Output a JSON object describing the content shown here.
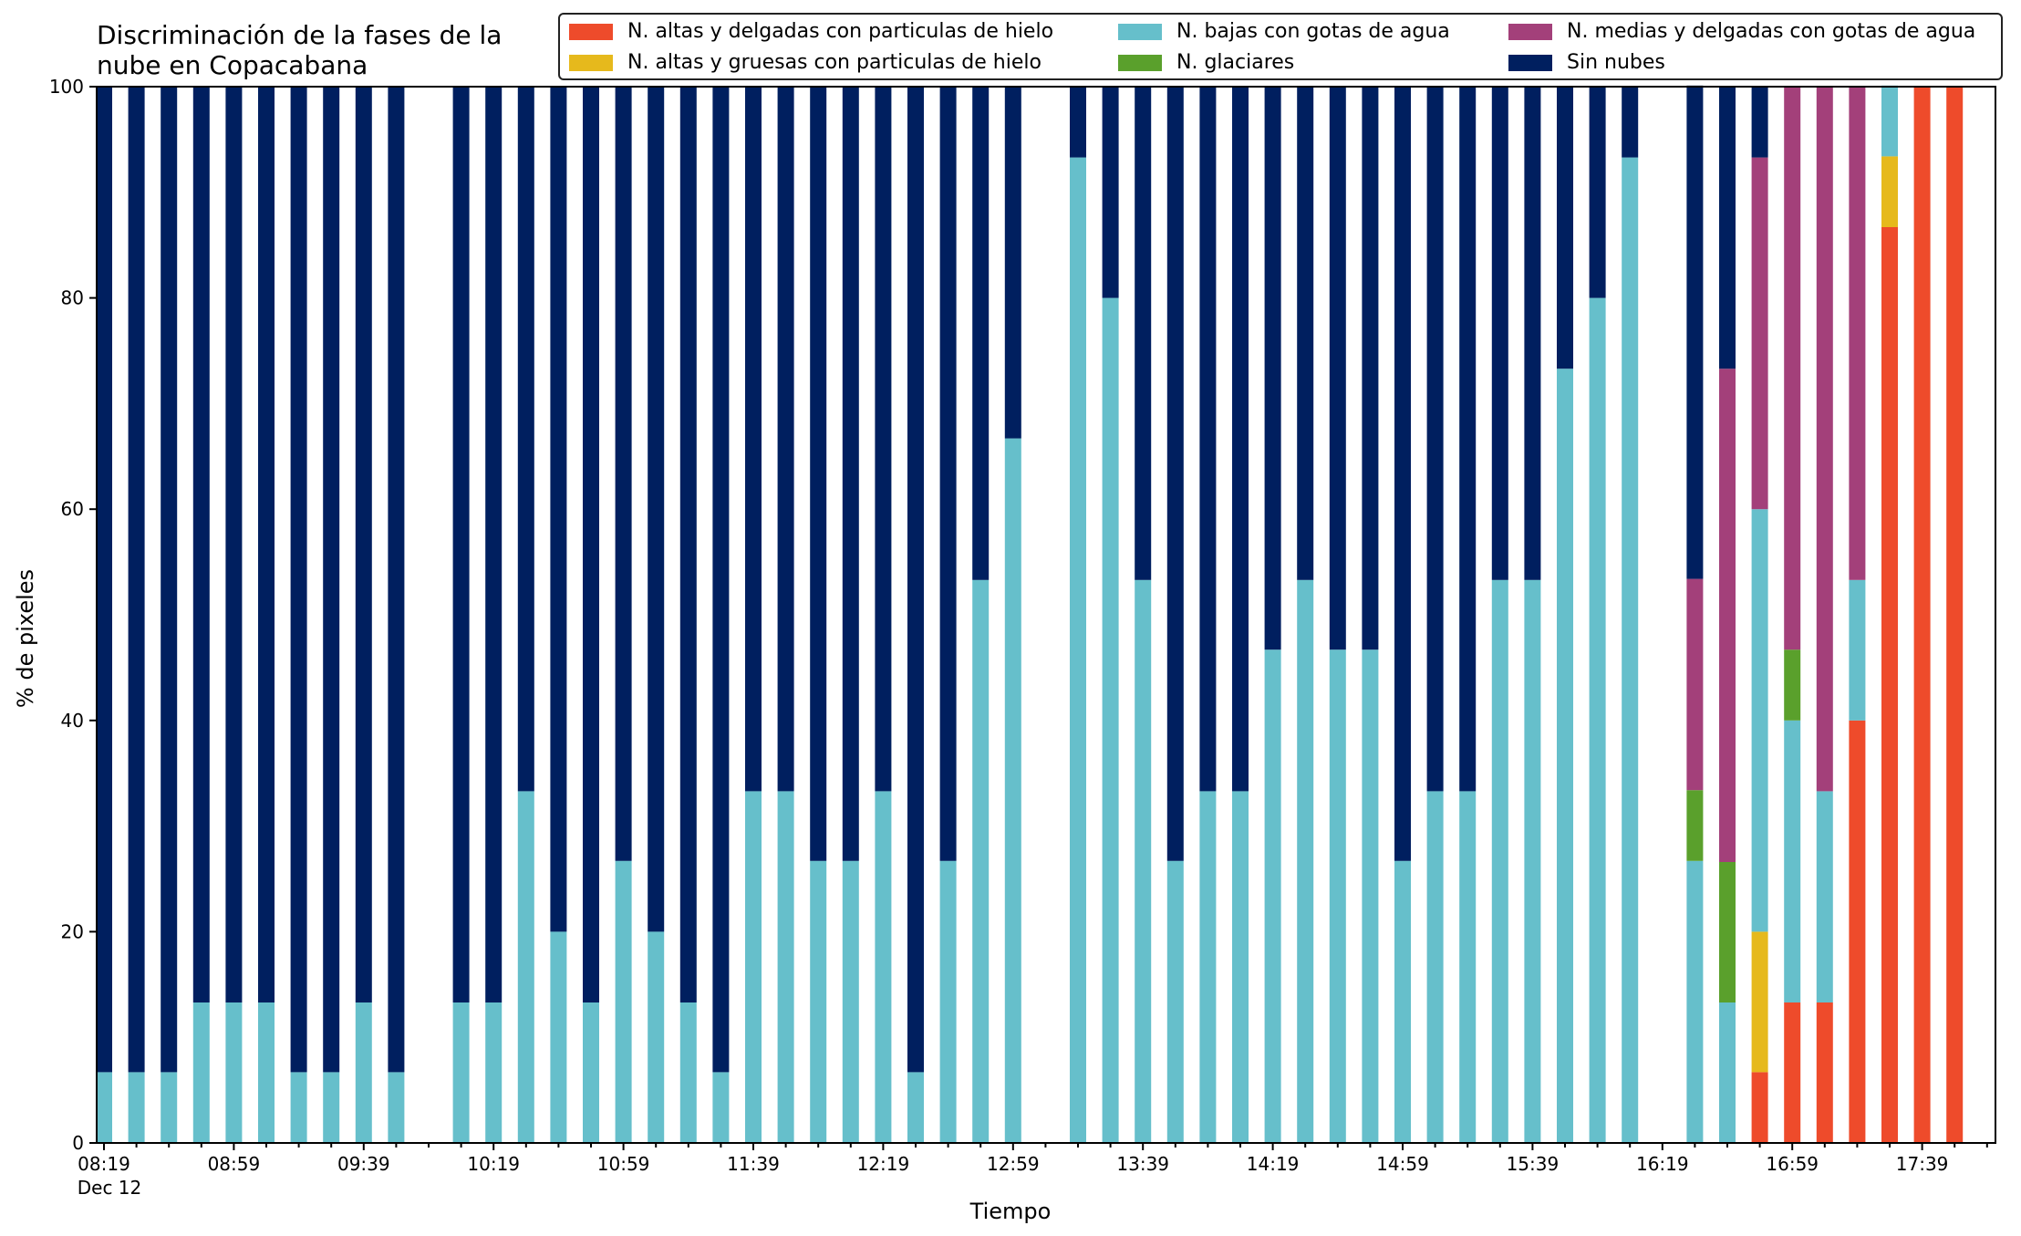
{
  "chart_data": {
    "type": "bar",
    "stacked": true,
    "title": "Discriminación de la fases de la\nnube en Copacabana",
    "xlabel": "Tiempo",
    "ylabel": "% de pixeles",
    "ylim": [
      0,
      100
    ],
    "yticks": [
      0,
      20,
      40,
      60,
      80,
      100
    ],
    "grid": false,
    "legend_position": "top-right",
    "x_tick_labels": [
      "08:19",
      "08:59",
      "09:39",
      "10:19",
      "10:59",
      "11:39",
      "12:19",
      "12:59",
      "13:39",
      "14:19",
      "14:59",
      "15:39",
      "16:19",
      "16:59",
      "17:39"
    ],
    "x_date_label": "Dec 12",
    "categories": [
      "08:19",
      "08:29",
      "08:39",
      "08:49",
      "08:59",
      "09:09",
      "09:19",
      "09:29",
      "09:39",
      "09:49",
      "09:59",
      "10:09",
      "10:19",
      "10:29",
      "10:39",
      "10:49",
      "10:59",
      "11:09",
      "11:19",
      "11:29",
      "11:39",
      "11:49",
      "11:59",
      "12:09",
      "12:19",
      "12:29",
      "12:39",
      "12:49",
      "12:59",
      "13:09",
      "13:19",
      "13:29",
      "13:39",
      "13:49",
      "13:59",
      "14:09",
      "14:19",
      "14:29",
      "14:39",
      "14:49",
      "14:59",
      "15:09",
      "15:19",
      "15:29",
      "15:39",
      "15:49",
      "15:59",
      "16:09",
      "16:19",
      "16:29",
      "16:39",
      "16:49",
      "16:59",
      "17:09",
      "17:19",
      "17:29",
      "17:39",
      "17:49"
    ],
    "series": [
      {
        "name": "N. altas y delgadas con particulas de hielo",
        "color": "#ee4b2b",
        "values": [
          0,
          0,
          0,
          0,
          0,
          0,
          0,
          0,
          0,
          0,
          null,
          0,
          0,
          0,
          0,
          0,
          0,
          0,
          0,
          0,
          0,
          0,
          0,
          0,
          0,
          0,
          0,
          0,
          0,
          null,
          0,
          0,
          0,
          0,
          0,
          0,
          0,
          0,
          0,
          0,
          0,
          0,
          0,
          0,
          0,
          0,
          0,
          0,
          null,
          0,
          0,
          6.7,
          13.3,
          13.3,
          40,
          86.7,
          100,
          100
        ]
      },
      {
        "name": "N. altas y gruesas con particulas de hielo",
        "color": "#e6b91c",
        "values": [
          0,
          0,
          0,
          0,
          0,
          0,
          0,
          0,
          0,
          0,
          null,
          0,
          0,
          0,
          0,
          0,
          0,
          0,
          0,
          0,
          0,
          0,
          0,
          0,
          0,
          0,
          0,
          0,
          0,
          null,
          0,
          0,
          0,
          0,
          0,
          0,
          0,
          0,
          0,
          0,
          0,
          0,
          0,
          0,
          0,
          0,
          0,
          0,
          null,
          0,
          0,
          13.3,
          0,
          0,
          0,
          6.7,
          0,
          0
        ]
      },
      {
        "name": "N. bajas con gotas de agua",
        "color": "#66bfcb",
        "values": [
          6.7,
          6.7,
          6.7,
          13.3,
          13.3,
          13.3,
          6.7,
          6.7,
          13.3,
          6.7,
          null,
          13.3,
          13.3,
          33.3,
          20,
          13.3,
          26.7,
          20,
          13.3,
          6.7,
          33.3,
          33.3,
          26.7,
          26.7,
          33.3,
          6.7,
          26.7,
          53.3,
          66.7,
          null,
          93.3,
          80,
          53.3,
          26.7,
          33.3,
          33.3,
          46.7,
          53.3,
          46.7,
          46.7,
          26.7,
          33.3,
          33.3,
          53.3,
          53.3,
          73.3,
          80,
          93.3,
          null,
          26.7,
          13.3,
          40,
          26.7,
          20,
          13.3,
          6.7,
          0,
          0
        ]
      },
      {
        "name": "N. glaciares",
        "color": "#5aa02c",
        "values": [
          0,
          0,
          0,
          0,
          0,
          0,
          0,
          0,
          0,
          0,
          null,
          0,
          0,
          0,
          0,
          0,
          0,
          0,
          0,
          0,
          0,
          0,
          0,
          0,
          0,
          0,
          0,
          0,
          0,
          null,
          0,
          0,
          0,
          0,
          0,
          0,
          0,
          0,
          0,
          0,
          0,
          0,
          0,
          0,
          0,
          0,
          0,
          0,
          null,
          6.7,
          13.3,
          0,
          6.7,
          0,
          0,
          0,
          0,
          0
        ]
      },
      {
        "name": "N. medias y delgadas con gotas de agua",
        "color": "#a3407a",
        "values": [
          0,
          0,
          0,
          0,
          0,
          0,
          0,
          0,
          0,
          0,
          null,
          0,
          0,
          0,
          0,
          0,
          0,
          0,
          0,
          0,
          0,
          0,
          0,
          0,
          0,
          0,
          0,
          0,
          0,
          null,
          0,
          0,
          0,
          0,
          0,
          0,
          0,
          0,
          0,
          0,
          0,
          0,
          0,
          0,
          0,
          0,
          0,
          0,
          null,
          20,
          46.7,
          33.3,
          53.3,
          66.7,
          46.7,
          0,
          0,
          0
        ]
      },
      {
        "name": "Sin nubes",
        "color": "#001f5f",
        "values": [
          93.3,
          93.3,
          93.3,
          86.7,
          86.7,
          86.7,
          93.3,
          93.3,
          86.7,
          93.3,
          null,
          86.7,
          86.7,
          66.7,
          80,
          86.7,
          73.3,
          80,
          86.7,
          93.3,
          66.7,
          66.7,
          73.3,
          73.3,
          66.7,
          93.3,
          73.3,
          46.7,
          33.3,
          null,
          6.7,
          20,
          46.7,
          73.3,
          66.7,
          66.7,
          53.3,
          46.7,
          53.3,
          53.3,
          73.3,
          66.7,
          66.7,
          46.7,
          46.7,
          26.7,
          20,
          6.7,
          null,
          46.7,
          26.7,
          6.7,
          0,
          0,
          0,
          0,
          0,
          0
        ]
      }
    ]
  }
}
